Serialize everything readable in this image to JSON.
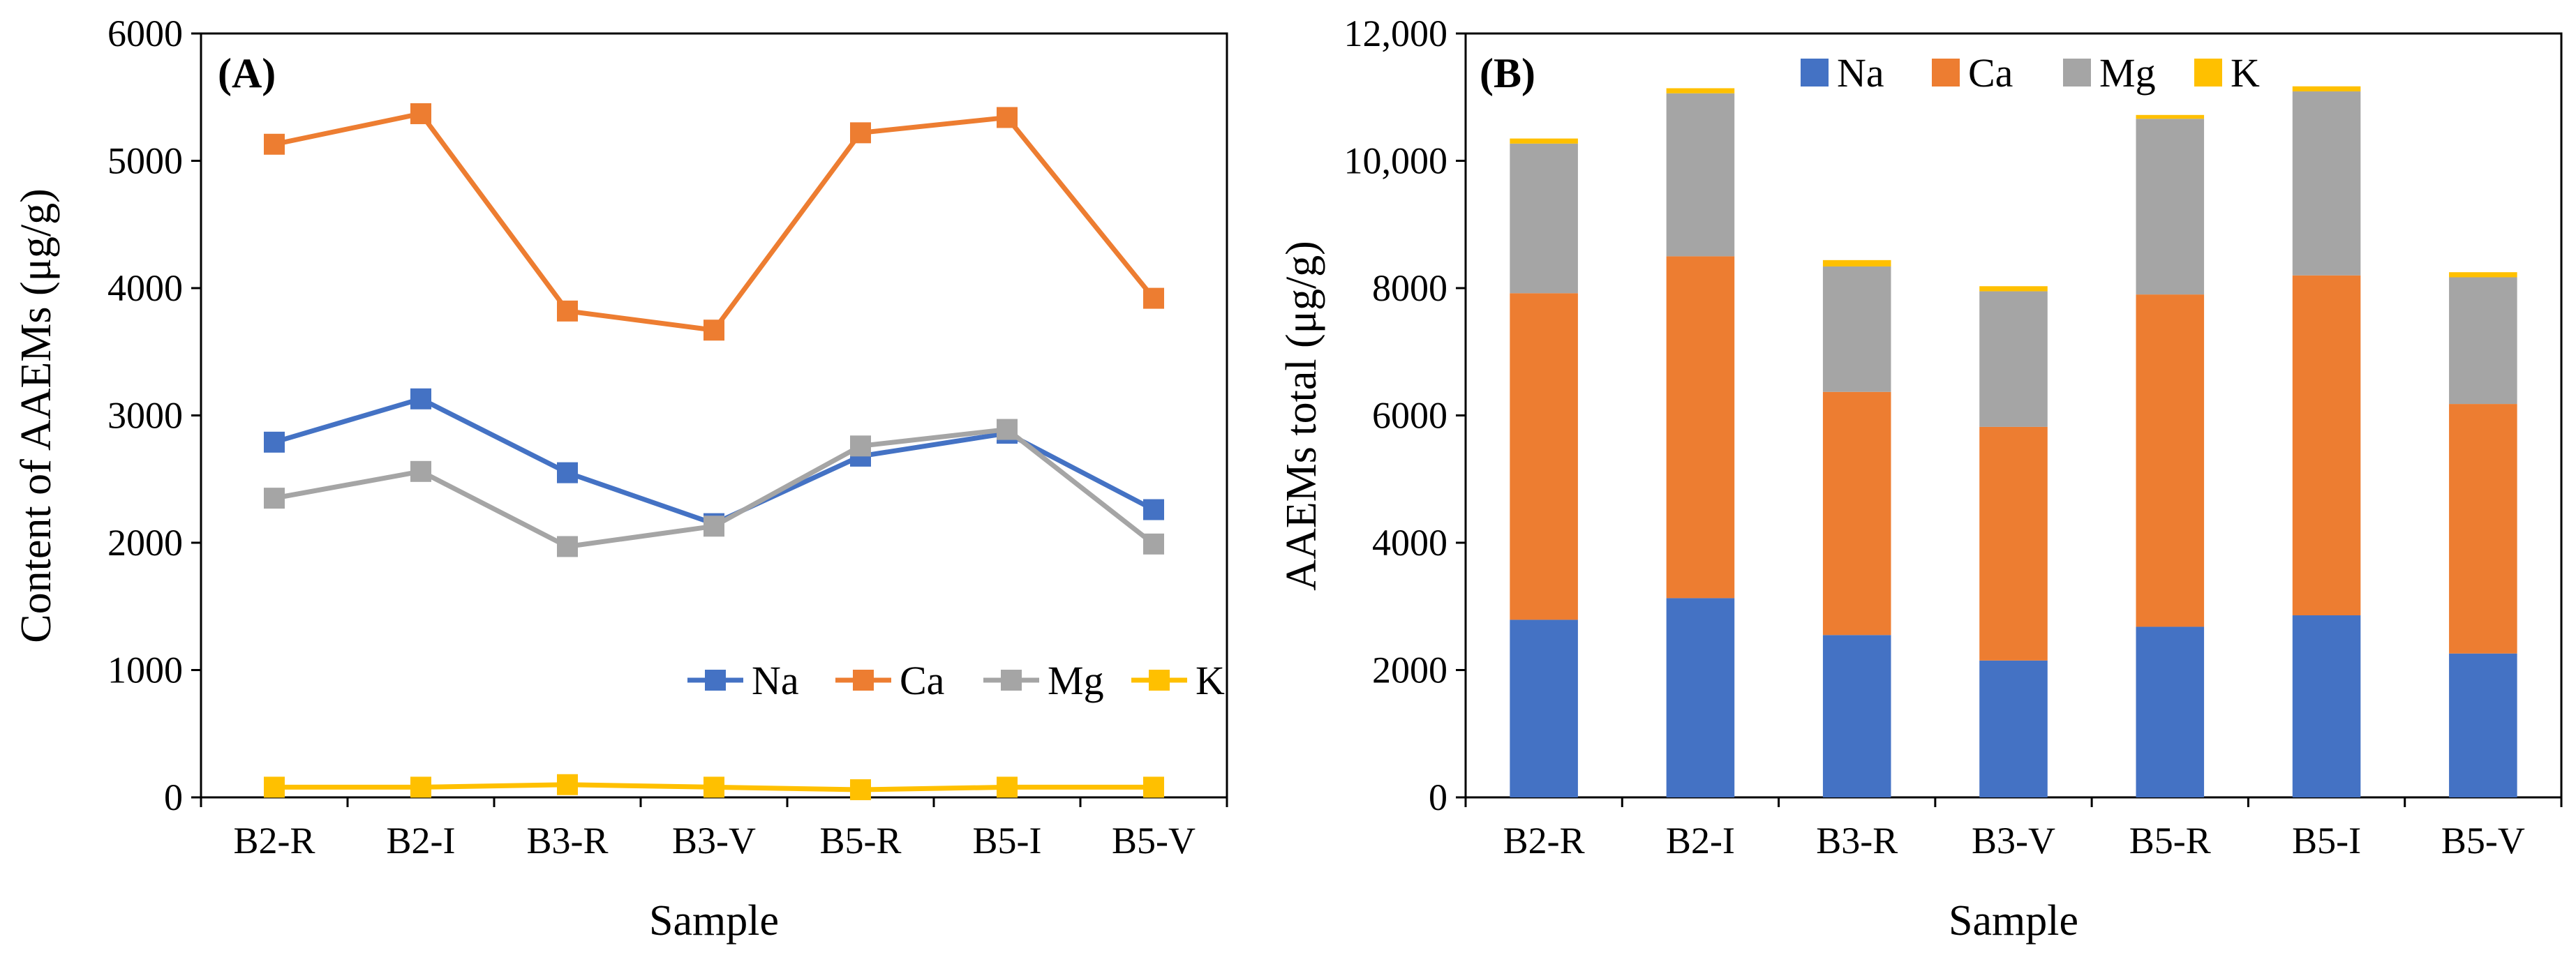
{
  "chart_data": [
    {
      "type": "line",
      "panel_label": "(A)",
      "categories": [
        "B2-R",
        "B2-I",
        "B3-R",
        "B3-V",
        "B5-R",
        "B5-I",
        "B5-V"
      ],
      "series": [
        {
          "name": "Na",
          "color": "#4472C4",
          "marker": "square",
          "values": [
            2790,
            3130,
            2550,
            2150,
            2680,
            2860,
            2260
          ]
        },
        {
          "name": "Ca",
          "color": "#ED7D31",
          "marker": "square",
          "values": [
            5130,
            5370,
            3820,
            3670,
            5220,
            5340,
            3920
          ]
        },
        {
          "name": "Mg",
          "color": "#A5A5A5",
          "marker": "square",
          "values": [
            2350,
            2560,
            1970,
            2130,
            2760,
            2890,
            1990
          ]
        },
        {
          "name": "K",
          "color": "#FFC000",
          "marker": "square",
          "values": [
            80,
            80,
            100,
            80,
            60,
            80,
            80
          ]
        }
      ],
      "xlabel": "Sample",
      "ylabel": "Content of AAEMs (μg/g)",
      "ylim": [
        0,
        6000
      ],
      "yticks": [
        "0",
        "1000",
        "2000",
        "3000",
        "4000",
        "5000",
        "6000"
      ],
      "grid": false,
      "legend": "bottom-right, inside plot"
    },
    {
      "type": "bar",
      "stacked": true,
      "panel_label": "(B)",
      "categories": [
        "B2-R",
        "B2-I",
        "B3-R",
        "B3-V",
        "B5-R",
        "B5-I",
        "B5-V"
      ],
      "series": [
        {
          "name": "Na",
          "color": "#4472C4",
          "values": [
            2790,
            3130,
            2550,
            2150,
            2680,
            2860,
            2260
          ]
        },
        {
          "name": "Ca",
          "color": "#ED7D31",
          "values": [
            5130,
            5370,
            3820,
            3670,
            5220,
            5340,
            3920
          ]
        },
        {
          "name": "Mg",
          "color": "#A5A5A5",
          "values": [
            2350,
            2560,
            1970,
            2130,
            2760,
            2890,
            1990
          ]
        },
        {
          "name": "K",
          "color": "#FFC000",
          "values": [
            80,
            80,
            100,
            80,
            60,
            80,
            80
          ]
        }
      ],
      "xlabel": "Sample",
      "ylabel": "AAEMs total (μg/g)",
      "ylim": [
        0,
        12000
      ],
      "yticks": [
        "0",
        "2000",
        "4000",
        "6000",
        "8000",
        "10,000",
        "12,000"
      ],
      "grid": false,
      "legend": "top-center, inside plot"
    }
  ]
}
